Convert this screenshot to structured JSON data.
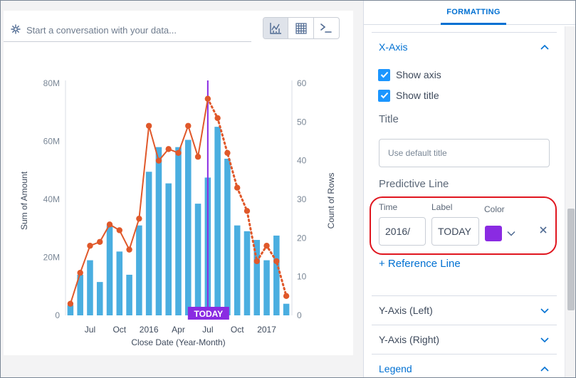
{
  "search": {
    "placeholder": "Start a conversation with your data...",
    "icon": "sparkle-icon"
  },
  "view_toggle": [
    {
      "name": "chart-view-button",
      "icon": "chart-icon",
      "active": true
    },
    {
      "name": "table-view-button",
      "icon": "grid-icon",
      "active": false
    },
    {
      "name": "query-view-button",
      "icon": "terminal-icon",
      "active": false
    }
  ],
  "panel": {
    "tab_formatting": "FORMATTING",
    "x_axis": {
      "header": "X-Axis",
      "show_axis": "Show axis",
      "show_title": "Show title",
      "title_label": "Title",
      "title_placeholder": "Use default title",
      "predictive_line": "Predictive Line",
      "time_label": "Time",
      "time_value": "2016/",
      "label_label": "Label",
      "label_value": "TODAY",
      "color_label": "Color",
      "color_value": "#8a2be2",
      "add_reference": "+ Reference Line"
    },
    "y_axis_left": "Y-Axis (Left)",
    "y_axis_right": "Y-Axis (Right)",
    "legend": "Legend"
  },
  "chart_data": {
    "type": "bar",
    "xlabel": "Close Date (Year-Month)",
    "ylabel": "Sum of Amount",
    "y2label": "Count of Rows",
    "ylim": [
      0,
      80
    ],
    "y2lim": [
      0,
      60
    ],
    "y_ticks": [
      "0",
      "20M",
      "40M",
      "60M",
      "80M"
    ],
    "y2_ticks": [
      "0",
      "10",
      "20",
      "30",
      "40",
      "50",
      "60"
    ],
    "x_tick_labels": [
      {
        "index": 2,
        "label": "Jul"
      },
      {
        "index": 5,
        "label": "Oct"
      },
      {
        "index": 8,
        "label": "2016"
      },
      {
        "index": 11,
        "label": "Apr"
      },
      {
        "index": 14,
        "label": "Jul"
      },
      {
        "index": 17,
        "label": "Oct"
      },
      {
        "index": 20,
        "label": "2017"
      }
    ],
    "bar_values_m": [
      3.5,
      14,
      19,
      11.5,
      31,
      22,
      14,
      31,
      49.5,
      58,
      45.5,
      58,
      60.5,
      38.5,
      47.5,
      65,
      54,
      31,
      29,
      26,
      19,
      27.5,
      4
    ],
    "line_values": [
      3,
      11,
      18,
      19,
      23.5,
      22,
      17,
      25,
      49,
      40,
      43,
      42,
      49,
      41,
      56,
      51,
      42,
      33,
      27,
      14,
      18,
      14,
      5
    ],
    "predict_start_index": 14,
    "today_index": 14,
    "today_label": "TODAY",
    "bar_color": "#4aaee0",
    "line_color": "#e0582a",
    "today_color": "#8a2be2"
  }
}
